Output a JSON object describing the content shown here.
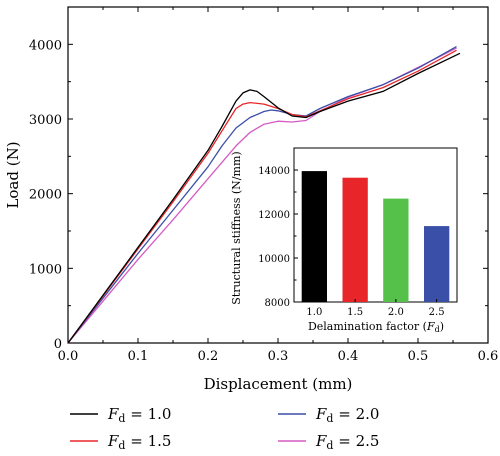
{
  "chart_data": [
    {
      "type": "line",
      "xlabel": "Displacement (mm)",
      "ylabel": "Load (N)",
      "xlim": [
        0.0,
        0.6
      ],
      "ylim": [
        0,
        4500
      ],
      "xticks": [
        "0.0",
        "0.1",
        "0.2",
        "0.3",
        "0.4",
        "0.5",
        "0.6"
      ],
      "yticks": [
        "0",
        "1000",
        "2000",
        "3000",
        "4000"
      ],
      "legend_placement": "bottom",
      "series": [
        {
          "name": "F_d = 1.0",
          "name_main": "F",
          "name_sub": "d",
          "name_rest": " = 1.0",
          "color": "#000000",
          "x": [
            0,
            0.05,
            0.1,
            0.15,
            0.2,
            0.22,
            0.24,
            0.25,
            0.26,
            0.27,
            0.28,
            0.3,
            0.32,
            0.34,
            0.36,
            0.4,
            0.45,
            0.5,
            0.56
          ],
          "y": [
            0,
            640,
            1280,
            1920,
            2580,
            2900,
            3240,
            3350,
            3390,
            3370,
            3300,
            3150,
            3040,
            3020,
            3100,
            3240,
            3370,
            3610,
            3880
          ]
        },
        {
          "name": "F_d = 1.5",
          "name_main": "F",
          "name_sub": "d",
          "name_rest": " = 1.5",
          "color": "#e8262a",
          "x": [
            0,
            0.05,
            0.1,
            0.15,
            0.2,
            0.22,
            0.24,
            0.25,
            0.26,
            0.28,
            0.3,
            0.32,
            0.34,
            0.36,
            0.4,
            0.45,
            0.5,
            0.555
          ],
          "y": [
            0,
            630,
            1260,
            1890,
            2540,
            2840,
            3140,
            3200,
            3220,
            3200,
            3140,
            3060,
            3030,
            3110,
            3270,
            3420,
            3640,
            3920
          ]
        },
        {
          "name": "F_d = 2.0",
          "name_main": "F",
          "name_sub": "d",
          "name_rest": " = 2.0",
          "color": "#3a4fa8",
          "x": [
            0,
            0.05,
            0.1,
            0.15,
            0.2,
            0.22,
            0.24,
            0.26,
            0.28,
            0.29,
            0.3,
            0.32,
            0.34,
            0.36,
            0.4,
            0.45,
            0.5,
            0.555
          ],
          "y": [
            0,
            600,
            1200,
            1780,
            2360,
            2640,
            2880,
            3020,
            3100,
            3120,
            3110,
            3060,
            3040,
            3140,
            3300,
            3460,
            3680,
            3970
          ]
        },
        {
          "name": "F_d = 2.5",
          "name_main": "F",
          "name_sub": "d",
          "name_rest": " = 2.5",
          "color": "#d65ac2",
          "x": [
            0,
            0.05,
            0.1,
            0.15,
            0.2,
            0.22,
            0.24,
            0.26,
            0.28,
            0.3,
            0.32,
            0.34,
            0.36,
            0.4,
            0.45,
            0.5,
            0.555
          ],
          "y": [
            0,
            560,
            1120,
            1650,
            2200,
            2420,
            2640,
            2820,
            2930,
            2970,
            2960,
            2980,
            3100,
            3290,
            3460,
            3690,
            3950
          ]
        }
      ]
    },
    {
      "type": "bar",
      "inset": true,
      "xlabel_main": "Delamination factor (",
      "xlabel_var": "F",
      "xlabel_sub": "d",
      "xlabel_close": ")",
      "ylabel": "Structural stiffness (N/mm)",
      "ylim": [
        8000,
        15000
      ],
      "yticks": [
        "8000",
        "10000",
        "12000",
        "14000"
      ],
      "categories": [
        "1.0",
        "1.5",
        "2.0",
        "2.5"
      ],
      "values": [
        13950,
        13650,
        12700,
        11450
      ],
      "colors": [
        "#000000",
        "#e8262a",
        "#56c14a",
        "#3a4fa8"
      ]
    }
  ]
}
